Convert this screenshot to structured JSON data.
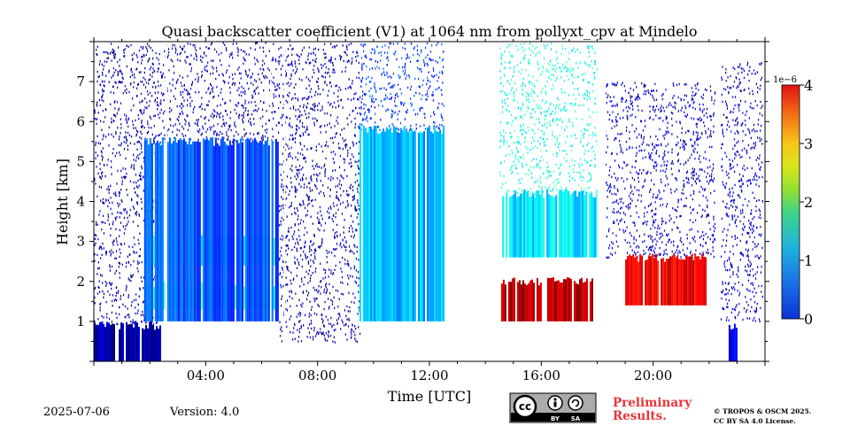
{
  "chart_data": {
    "type": "heatmap",
    "title": "Quasi backscatter coefficient (V1) at 1064 nm from pollyxt_cpv at Mindelo",
    "xlabel": "Time [UTC]",
    "ylabel": "Height [km]",
    "xlim_hours": [
      0,
      24
    ],
    "ylim_km": [
      0,
      8
    ],
    "x_ticks": [
      {
        "hour": 4,
        "label": "04:00"
      },
      {
        "hour": 8,
        "label": "08:00"
      },
      {
        "hour": 12,
        "label": "12:00"
      },
      {
        "hour": 16,
        "label": "16:00"
      },
      {
        "hour": 20,
        "label": "20:00"
      }
    ],
    "y_ticks": [
      {
        "km": 1,
        "label": "1"
      },
      {
        "km": 2,
        "label": "2"
      },
      {
        "km": 3,
        "label": "3"
      },
      {
        "km": 4,
        "label": "4"
      },
      {
        "km": 5,
        "label": "5"
      },
      {
        "km": 6,
        "label": "6"
      },
      {
        "km": 7,
        "label": "7"
      }
    ],
    "colorbar": {
      "range": [
        0,
        4
      ],
      "scale_label": "1e−6",
      "ticks": [
        {
          "value": 0,
          "label": "0"
        },
        {
          "value": 1,
          "label": "1"
        },
        {
          "value": 2,
          "label": "2"
        },
        {
          "value": 3,
          "label": "3"
        },
        {
          "value": 4,
          "label": "4"
        }
      ],
      "colormap": "jet"
    },
    "layers": [
      {
        "t0": 0.0,
        "t1": 2.4,
        "h_bottom": 0.0,
        "h_top": 0.9,
        "value": 0.15,
        "note": "near-surface"
      },
      {
        "t0": 1.8,
        "t1": 6.6,
        "h_bottom": 1.3,
        "h_top": 1.9,
        "value": 1.7
      },
      {
        "t0": 1.8,
        "t1": 6.6,
        "h_bottom": 2.4,
        "h_top": 3.1,
        "value": 1.6
      },
      {
        "t0": 1.8,
        "t1": 6.6,
        "h_bottom": 1.0,
        "h_top": 5.5,
        "value": 0.8
      },
      {
        "t0": 9.5,
        "t1": 12.5,
        "h_bottom": 1.0,
        "h_top": 5.8,
        "value": 1.2
      },
      {
        "t0": 14.5,
        "t1": 17.8,
        "h_bottom": 1.0,
        "h_top": 2.0,
        "value": 3.8
      },
      {
        "t0": 14.6,
        "t1": 18.0,
        "h_bottom": 2.6,
        "h_top": 4.2,
        "value": 1.4
      },
      {
        "t0": 19.0,
        "t1": 21.9,
        "h_bottom": 1.4,
        "h_top": 2.6,
        "value": 3.6
      },
      {
        "t0": 22.7,
        "t1": 23.0,
        "h_bottom": 0.0,
        "h_top": 0.9,
        "value": 0.4
      }
    ]
  },
  "footer": {
    "date": "2025-07-06",
    "version": "Version: 4.0",
    "preliminary_line1": "Preliminary",
    "preliminary_line2": "Results.",
    "license_line1": "© TROPOS & OSCM 2025.",
    "license_line2": "CC BY SA 4.0 License."
  },
  "cc_badge": {
    "cc_text": "cc",
    "by_text": "BY",
    "sa_text": "SA"
  },
  "colors": {
    "background": "#ffffff",
    "prelim_red": "#e8353a",
    "badge_gray": "#a9aca9"
  }
}
